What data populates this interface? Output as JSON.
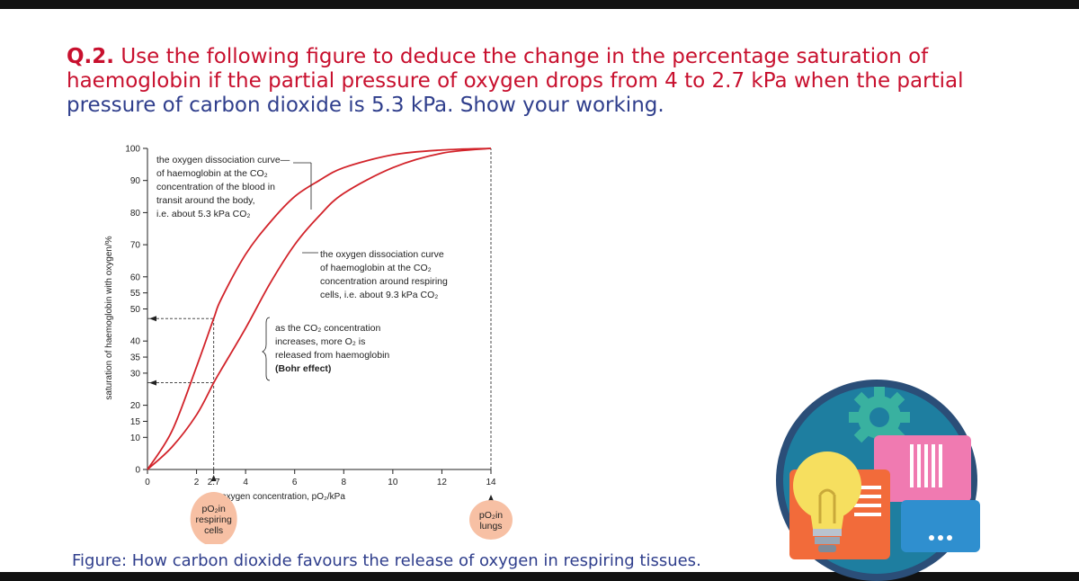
{
  "question": {
    "number": "Q.2.",
    "line_red": " Use the following figure to deduce the change in the percentage saturation of haemoglobin if the partial pressure of oxygen drops from 4 to 2.7 kPa when the partial",
    "line_blue": "pressure of carbon dioxide is 5.3 kPa. Show your working."
  },
  "caption": "Figure: How carbon dioxide favours the release of oxygen in respiring tissues.",
  "colors": {
    "curve": "#d2232a",
    "text_blue": "#2f3e8c",
    "badge": "#f7c0a4"
  },
  "chart_data": {
    "type": "line",
    "xlabel": "oxygen concentration, pO₂/kPa",
    "ylabel": "saturation of haemoglobin with oxygen/%",
    "xlim": [
      0,
      14
    ],
    "ylim": [
      0,
      100
    ],
    "x_ticks": [
      "0",
      "2",
      "2.7",
      "4",
      "6",
      "8",
      "10",
      "12",
      "14"
    ],
    "y_ticks": [
      "0",
      "10",
      "15",
      "20",
      "30",
      "35",
      "40",
      "50",
      "55",
      "60",
      "70",
      "80",
      "90",
      "100"
    ],
    "series": [
      {
        "x": [
          0,
          1,
          2,
          2.7,
          3,
          4,
          5,
          6,
          7,
          8,
          10,
          12,
          14
        ],
        "values": [
          0,
          12,
          32,
          47,
          53,
          67,
          77,
          85,
          90,
          94,
          98,
          99.5,
          100
        ]
      },
      {
        "x": [
          0,
          1,
          2,
          2.7,
          3,
          4,
          5,
          6,
          7,
          8,
          10,
          12,
          14
        ],
        "values": [
          0,
          7,
          17,
          27,
          31,
          44,
          58,
          70,
          79,
          86,
          94,
          98.5,
          100
        ]
      }
    ],
    "annotations": [
      {
        "lines": [
          "the oxygen dissociation curve—",
          "of haemoglobin at the CO₂",
          "concentration of the blood in",
          "transit around the body,",
          "i.e. about 5.3 kPa CO₂"
        ]
      },
      {
        "lines": [
          "the oxygen dissociation curve",
          "of haemoglobin at the CO₂",
          "concentration around respiring",
          "cells, i.e. about 9.3 kPa CO₂"
        ]
      },
      {
        "lines": [
          "as the CO₂ concentration",
          "increases, more O₂ is",
          "released from haemoglobin",
          "(Bohr effect)"
        ]
      }
    ],
    "badges": [
      {
        "lines": [
          "pO₂in",
          "respiring",
          "cells"
        ]
      },
      {
        "lines": [
          "pO₂in",
          "lungs"
        ]
      }
    ]
  }
}
